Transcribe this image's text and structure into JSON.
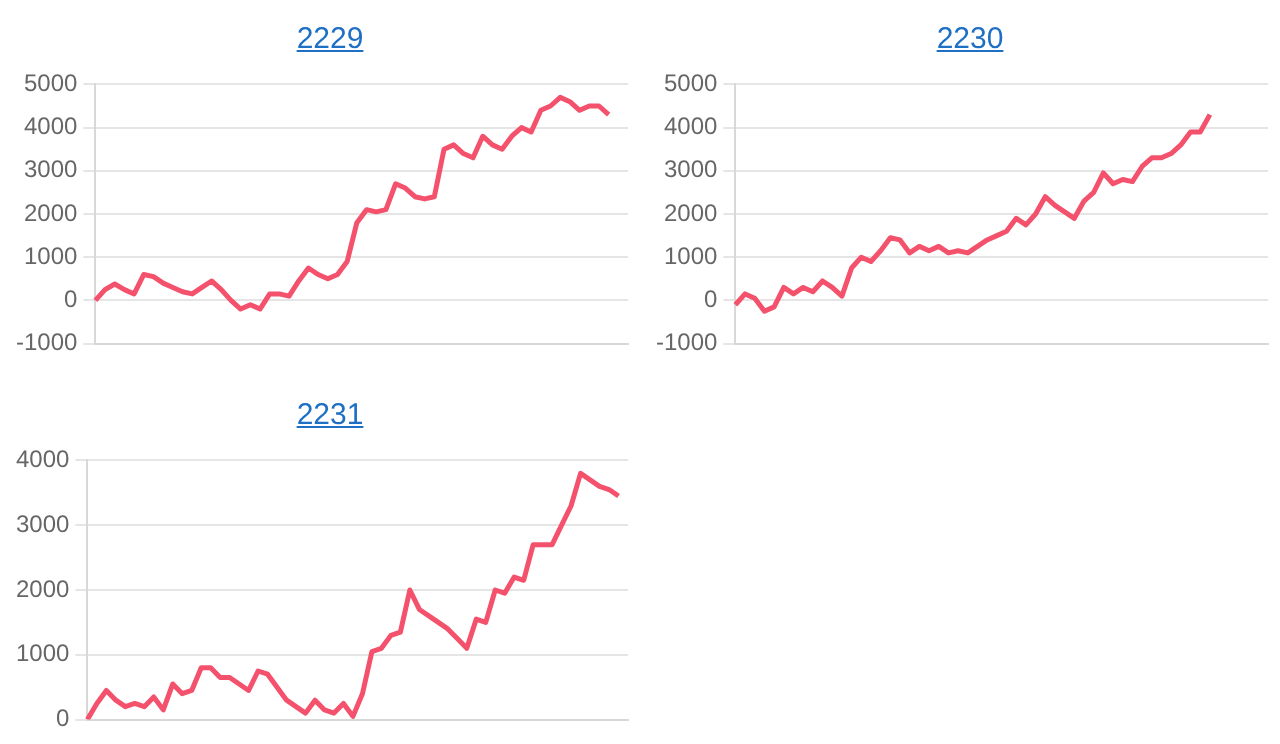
{
  "chart_data": [
    {
      "type": "line",
      "title": "2229",
      "categories": [
        null,
        null,
        null,
        null,
        null,
        null,
        null,
        null,
        null,
        null,
        null,
        null,
        null,
        null,
        null,
        null,
        null,
        null,
        null,
        null,
        null,
        null,
        null,
        null,
        null,
        null,
        null,
        null,
        null,
        null,
        null,
        null,
        null,
        null,
        null,
        null,
        null,
        null,
        null,
        null,
        null,
        null,
        null,
        null,
        null,
        null,
        null,
        null,
        null,
        null,
        null,
        null,
        null,
        null,
        null,
        null
      ],
      "series": [
        {
          "color": "#f4516c",
          "values": [
            0,
            250,
            380,
            250,
            150,
            600,
            550,
            400,
            300,
            200,
            150,
            300,
            450,
            250,
            0,
            -200,
            -100,
            -200,
            150,
            150,
            100,
            450,
            750,
            600,
            500,
            600,
            900,
            1800,
            2100,
            2050,
            2100,
            2700,
            2600,
            2400,
            2350,
            2400,
            3500,
            3600,
            3400,
            3300,
            3800,
            3600,
            3500,
            3800,
            4000,
            3900,
            4400,
            4500,
            4700,
            4600,
            4400,
            4500,
            4500,
            4300,
            null,
            null
          ]
        }
      ],
      "ylim": [
        -1000,
        5000
      ],
      "yticks": [
        -1000,
        0,
        1000,
        2000,
        3000,
        4000,
        5000
      ],
      "grid": "y",
      "tick_labels": "y",
      "legend": false,
      "marker": "none"
    },
    {
      "type": "line",
      "title": "2230",
      "categories": [
        null,
        null,
        null,
        null,
        null,
        null,
        null,
        null,
        null,
        null,
        null,
        null,
        null,
        null,
        null,
        null,
        null,
        null,
        null,
        null,
        null,
        null,
        null,
        null,
        null,
        null,
        null,
        null,
        null,
        null,
        null,
        null,
        null,
        null,
        null,
        null,
        null,
        null,
        null,
        null,
        null,
        null,
        null,
        null,
        null,
        null,
        null,
        null,
        null,
        null,
        null,
        null,
        null,
        null,
        null,
        null
      ],
      "series": [
        {
          "color": "#f4516c",
          "values": [
            -100,
            150,
            50,
            -250,
            -150,
            300,
            150,
            300,
            200,
            450,
            300,
            100,
            750,
            1000,
            900,
            1150,
            1450,
            1400,
            1100,
            1250,
            1150,
            1250,
            1100,
            1150,
            1100,
            1250,
            1400,
            1500,
            1600,
            1900,
            1750,
            2000,
            2400,
            2200,
            2050,
            1900,
            2300,
            2500,
            2950,
            2700,
            2800,
            2750,
            3100,
            3300,
            3300,
            3400,
            3600,
            3900,
            3900,
            4300,
            null,
            null,
            null,
            null,
            null,
            null
          ]
        }
      ],
      "ylim": [
        -1000,
        5000
      ],
      "yticks": [
        -1000,
        0,
        1000,
        2000,
        3000,
        4000,
        5000
      ],
      "grid": "y",
      "tick_labels": "y",
      "legend": false,
      "marker": "none"
    },
    {
      "type": "line",
      "title": "2231",
      "categories": [
        null,
        null,
        null,
        null,
        null,
        null,
        null,
        null,
        null,
        null,
        null,
        null,
        null,
        null,
        null,
        null,
        null,
        null,
        null,
        null,
        null,
        null,
        null,
        null,
        null,
        null,
        null,
        null,
        null,
        null,
        null,
        null,
        null,
        null,
        null,
        null,
        null,
        null,
        null,
        null,
        null,
        null,
        null,
        null,
        null,
        null,
        null,
        null,
        null,
        null,
        null,
        null,
        null,
        null,
        null,
        null,
        null,
        null
      ],
      "series": [
        {
          "color": "#f4516c",
          "values": [
            0,
            250,
            450,
            300,
            200,
            250,
            200,
            350,
            150,
            550,
            400,
            450,
            800,
            800,
            650,
            650,
            550,
            450,
            750,
            700,
            500,
            300,
            200,
            100,
            300,
            150,
            100,
            250,
            50,
            400,
            1050,
            1100,
            1300,
            1350,
            2000,
            1700,
            1600,
            1500,
            1400,
            1250,
            1100,
            1550,
            1500,
            2000,
            1950,
            2200,
            2150,
            2700,
            2700,
            2700,
            3000,
            3300,
            3800,
            3700,
            3600,
            3550,
            3450,
            null
          ]
        }
      ],
      "ylim": [
        0,
        4000
      ],
      "yticks": [
        0,
        1000,
        2000,
        3000,
        4000
      ],
      "grid": "y",
      "tick_labels": "y",
      "legend": false,
      "marker": "none"
    }
  ]
}
